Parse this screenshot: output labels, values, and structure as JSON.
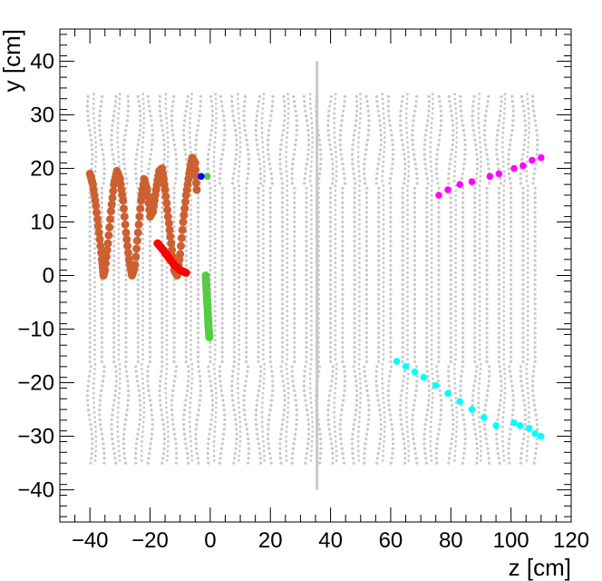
{
  "chart_data": {
    "type": "scatter",
    "title": "",
    "xlabel": "z [cm]",
    "ylabel": "y [cm]",
    "xlim": [
      -50,
      120
    ],
    "ylim": [
      -46,
      46
    ],
    "x_ticks": [
      -40,
      -20,
      0,
      20,
      40,
      60,
      80,
      100,
      120
    ],
    "x_tick_labels": [
      "−40",
      "−20",
      "0",
      "20",
      "40",
      "60",
      "80",
      "100",
      "120"
    ],
    "y_ticks": [
      -40,
      -30,
      -20,
      -10,
      0,
      10,
      20,
      30,
      40
    ],
    "y_tick_labels": [
      "−40",
      "−30",
      "−20",
      "−10",
      "0",
      "10",
      "20",
      "30",
      "40"
    ],
    "grid": false,
    "legend": "none",
    "background_hits": {
      "color": "#c8c8c8",
      "wire_planes_z": [
        -40,
        -36,
        -32,
        -28,
        -24,
        -20,
        -16,
        -12,
        -8,
        -4,
        0,
        4,
        8,
        12,
        16,
        20,
        24,
        28,
        32,
        36,
        40,
        44,
        48,
        52,
        56,
        60,
        64,
        68,
        72,
        76,
        80,
        84,
        88,
        92,
        96,
        100,
        104,
        108
      ],
      "y_range": [
        -35,
        34
      ],
      "central_line": {
        "z": 35.5,
        "y_range": [
          -40,
          40
        ]
      }
    },
    "series": [
      {
        "color": "#cd6030",
        "points": [
          [
            -40,
            19
          ],
          [
            -39,
            17
          ],
          [
            -38,
            13
          ],
          [
            -37,
            8
          ],
          [
            -36,
            3
          ],
          [
            -35.5,
            0
          ],
          [
            -35,
            1
          ],
          [
            -34,
            6
          ],
          [
            -33,
            12
          ],
          [
            -32,
            17
          ],
          [
            -31,
            19.5
          ],
          [
            -30,
            18
          ],
          [
            -29,
            14
          ],
          [
            -28,
            8
          ],
          [
            -27,
            3
          ],
          [
            -26,
            0
          ],
          [
            -25,
            2
          ],
          [
            -24,
            8
          ],
          [
            -23,
            14
          ],
          [
            -22,
            18
          ],
          [
            -21,
            16
          ],
          [
            -20,
            11
          ],
          [
            -19,
            12
          ],
          [
            -18,
            16
          ],
          [
            -17,
            19.5
          ],
          [
            -16,
            20
          ],
          [
            -15,
            16
          ],
          [
            -14,
            11
          ],
          [
            -13,
            6
          ],
          [
            -12,
            1
          ],
          [
            -11,
            0
          ],
          [
            -10,
            4
          ],
          [
            -9,
            10
          ],
          [
            -8,
            15
          ],
          [
            -7,
            19
          ],
          [
            -6,
            22
          ],
          [
            -5,
            21
          ],
          [
            -4.5,
            16
          ]
        ]
      },
      {
        "color": "#ff0000",
        "points": [
          [
            -17.5,
            6
          ],
          [
            -16,
            5
          ],
          [
            -14,
            3.5
          ],
          [
            -12,
            2
          ],
          [
            -10,
            1
          ],
          [
            -8,
            0.5
          ]
        ]
      },
      {
        "color": "#55cc44",
        "points": [
          [
            -1.5,
            0
          ],
          [
            -1.3,
            -2
          ],
          [
            -1.1,
            -4
          ],
          [
            -0.9,
            -6
          ],
          [
            -0.7,
            -8
          ],
          [
            -0.5,
            -10
          ],
          [
            -0.3,
            -11.5
          ]
        ]
      },
      {
        "color": "#55cc44",
        "points": [
          [
            -1,
            18.5
          ]
        ]
      },
      {
        "color": "#0000ff",
        "points": [
          [
            -3,
            18.5
          ]
        ]
      },
      {
        "color": "#ff00ff",
        "points": [
          [
            76,
            15
          ],
          [
            79,
            16
          ],
          [
            83,
            17
          ],
          [
            87,
            17.5
          ],
          [
            93,
            18.5
          ],
          [
            96,
            19
          ],
          [
            101,
            20
          ],
          [
            104,
            20.5
          ],
          [
            107,
            21.5
          ],
          [
            110,
            22
          ]
        ]
      },
      {
        "color": "#00ffff",
        "points": [
          [
            62,
            -16
          ],
          [
            65,
            -17
          ],
          [
            68,
            -18
          ],
          [
            71,
            -19
          ],
          [
            75,
            -20.5
          ],
          [
            79,
            -22
          ],
          [
            83,
            -23.5
          ],
          [
            87,
            -25
          ],
          [
            91,
            -26.5
          ],
          [
            95,
            -28
          ],
          [
            101,
            -27.5
          ],
          [
            103,
            -28
          ],
          [
            106,
            -28.5
          ],
          [
            108,
            -29.5
          ],
          [
            110,
            -30
          ]
        ]
      }
    ]
  }
}
